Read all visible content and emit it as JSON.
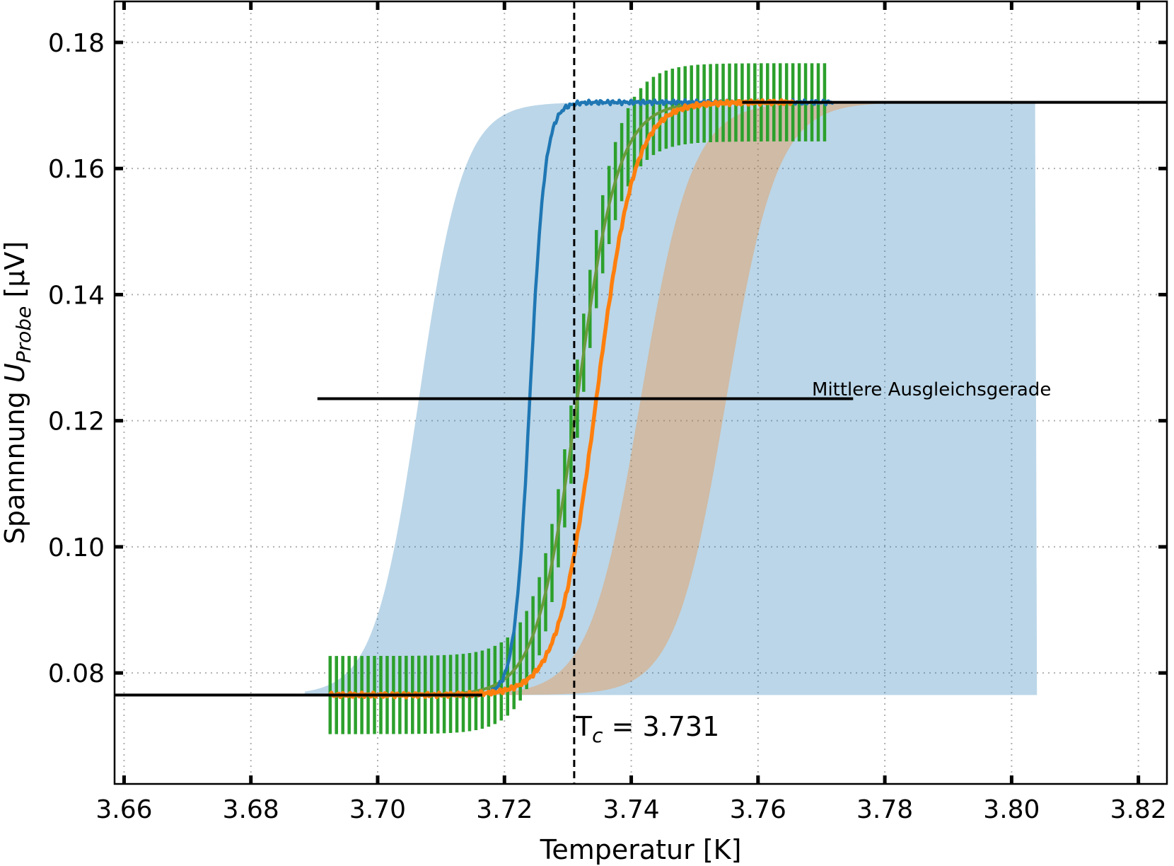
{
  "chart_data": {
    "type": "line",
    "title": "",
    "xlabel": "Temperatur [K]",
    "ylabel": {
      "main": "Spannnung ",
      "var": "U",
      "sub": "Probe",
      "unit": " [μV]"
    },
    "xlim": [
      3.6585,
      3.8245
    ],
    "ylim": [
      0.0624,
      0.1865
    ],
    "xticks": [
      3.66,
      3.68,
      3.7,
      3.72,
      3.74,
      3.76,
      3.78,
      3.8,
      3.82
    ],
    "xtick_labels": [
      "3.66",
      "3.68",
      "3.70",
      "3.72",
      "3.74",
      "3.76",
      "3.78",
      "3.80",
      "3.82"
    ],
    "yticks": [
      0.08,
      0.1,
      0.12,
      0.14,
      0.16,
      0.18
    ],
    "ytick_labels": [
      "0.08",
      "0.10",
      "0.12",
      "0.14",
      "0.16",
      "0.18"
    ],
    "grid": true,
    "colors": {
      "blue": "#1f77b4",
      "orange": "#ff7f0e",
      "green": "#2ca02c",
      "olive": "#6a9a3c",
      "blue_band": "#bad3e8",
      "orange_band": "#fdd7b4",
      "overlap": "#d4bcaa"
    },
    "bands": [
      {
        "color": "blue",
        "opacity": 0.3,
        "ylow": 0.0765,
        "yhigh": 0.1705,
        "T0": 3.7065,
        "width": 0.0035,
        "xstart": 3.6885,
        "xend": 3.804
      },
      {
        "color": "orange",
        "opacity": 0.3,
        "ylow": 0.0765,
        "yhigh": 0.1705,
        "T0": 3.7415,
        "width": 0.004,
        "xstart": 3.695,
        "xend": 3.796
      },
      {
        "color": "orange",
        "opacity": 0.3,
        "ylow": 0.0765,
        "yhigh": 0.1705,
        "T0": 3.755,
        "width": 0.004,
        "xstart": 3.695,
        "xend": 3.796
      }
    ],
    "series": [
      {
        "color": "blue",
        "ylow": 0.0765,
        "yhigh": 0.1705,
        "T0": 3.724,
        "width": 0.0012,
        "xstart": 3.6925,
        "xend": 3.772
      },
      {
        "color": "orange",
        "ylow": 0.0765,
        "yhigh": 0.1705,
        "T0": 3.7345,
        "width": 0.003,
        "xstart": 3.6925,
        "xend": 3.7655
      },
      {
        "color": "olive",
        "ylow": 0.0765,
        "yhigh": 0.1705,
        "T0": 3.7315,
        "width": 0.0032,
        "xstart": 3.6925,
        "xend": 3.765
      }
    ],
    "errorbars": {
      "color": "green",
      "xstart": 3.6925,
      "xend": 3.7705,
      "step": 0.001,
      "yerr": 0.0062
    },
    "hlines": [
      {
        "y": 0.0765,
        "x0": 3.6585,
        "x1": 3.7165
      },
      {
        "y": 0.1705,
        "x0": 3.7575,
        "x1": 3.8245
      },
      {
        "y": 0.1235,
        "x0": 3.6905,
        "x1": 3.775
      }
    ],
    "vline": {
      "x": 3.731
    },
    "annotations": [
      {
        "text": "Mittlere Ausgleichsgerade",
        "x": 3.7685,
        "y": 0.125
      },
      {
        "text_base": "T",
        "text_sub": "c",
        "text_value": " = 3.731",
        "x": 3.731,
        "y": 0.0715
      }
    ]
  }
}
